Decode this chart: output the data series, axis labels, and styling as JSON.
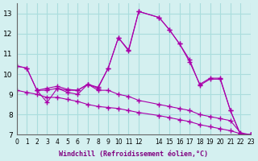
{
  "xlabel": "Windchill (Refroidissement éolien,°C)",
  "ylabel": "",
  "background_color": "#d4f0f0",
  "line_color": "#aa00aa",
  "grid_color": "#aadddd",
  "xlim": [
    0,
    23
  ],
  "ylim": [
    7,
    13.5
  ],
  "yticks": [
    7,
    8,
    9,
    10,
    11,
    12,
    13
  ],
  "xticks": [
    0,
    1,
    2,
    3,
    4,
    5,
    6,
    7,
    8,
    9,
    10,
    11,
    12,
    14,
    15,
    16,
    17,
    18,
    19,
    20,
    21,
    22,
    23
  ],
  "xtick_labels": [
    "0",
    "1",
    "2",
    "3",
    "4",
    "5",
    "6",
    "7",
    "8",
    "9",
    "10",
    "11",
    "12",
    "14",
    "15",
    "16",
    "17",
    "18",
    "19",
    "20",
    "21",
    "22",
    "23"
  ],
  "series": [
    {
      "x": [
        0,
        1,
        2,
        3,
        4,
        5,
        6,
        7,
        8,
        9,
        10,
        11,
        12,
        14,
        15,
        16,
        17,
        18,
        19,
        20,
        21,
        22,
        23
      ],
      "y": [
        10.4,
        10.3,
        9.2,
        9.2,
        9.3,
        9.2,
        9.2,
        9.5,
        9.3,
        10.3,
        11.8,
        11.2,
        13.1,
        12.8,
        12.2,
        11.5,
        10.6,
        9.5,
        9.8,
        9.8,
        8.2,
        7.0,
        7.0
      ]
    },
    {
      "x": [
        0,
        1,
        2,
        3,
        4,
        5,
        6,
        7,
        8,
        9,
        10,
        11,
        12,
        14,
        15,
        16,
        17,
        18,
        19,
        20,
        21,
        22,
        23
      ],
      "y": [
        10.4,
        10.3,
        9.2,
        9.3,
        9.4,
        9.25,
        9.2,
        9.5,
        9.35,
        10.3,
        11.8,
        11.15,
        13.1,
        12.8,
        12.2,
        11.5,
        10.7,
        9.45,
        9.75,
        9.75,
        8.2,
        7.0,
        7.0
      ]
    },
    {
      "x": [
        2,
        3,
        4,
        5,
        6,
        7,
        8,
        9,
        10,
        11,
        12,
        14,
        15,
        16,
        17,
        18,
        19,
        20,
        21,
        22,
        23
      ],
      "y": [
        9.2,
        8.6,
        9.3,
        9.1,
        9.0,
        9.5,
        9.2,
        9.2,
        9.0,
        8.9,
        8.7,
        8.5,
        8.4,
        8.3,
        8.2,
        8.0,
        7.9,
        7.8,
        7.7,
        7.1,
        7.0
      ]
    },
    {
      "x": [
        0,
        1,
        2,
        3,
        4,
        5,
        6,
        7,
        8,
        9,
        10,
        11,
        12,
        14,
        15,
        16,
        17,
        18,
        19,
        20,
        21,
        22,
        23
      ],
      "y": [
        9.2,
        9.1,
        9.0,
        8.85,
        8.85,
        8.75,
        8.65,
        8.5,
        8.4,
        8.35,
        8.3,
        8.2,
        8.1,
        7.95,
        7.85,
        7.75,
        7.65,
        7.5,
        7.4,
        7.3,
        7.2,
        7.05,
        7.0
      ]
    }
  ]
}
